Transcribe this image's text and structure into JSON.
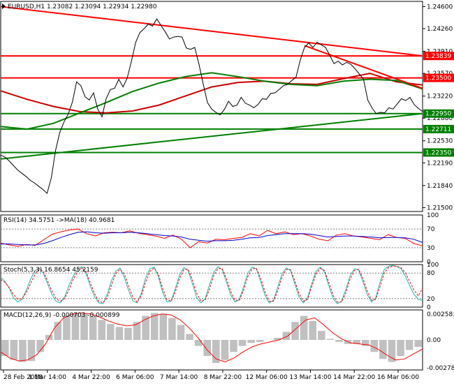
{
  "chart_data": {
    "type": "line",
    "symbol": "EURUSD",
    "timeframe": "H1",
    "ohlc_header": [
      "1.23082",
      "1.23094",
      "1.22934",
      "1.22980"
    ],
    "main": {
      "ylim": [
        1.2144,
        1.2468
      ],
      "y_ticks": [
        "1.24600",
        "1.24260",
        "1.23910",
        "1.23570",
        "1.23220",
        "1.22880",
        "1.22530",
        "1.22190",
        "1.21840",
        "1.21500"
      ],
      "x_range": [
        0,
        100
      ],
      "price": {
        "x": [
          0,
          1,
          2,
          3,
          4,
          5,
          6,
          7,
          8,
          9,
          10,
          11,
          12,
          13,
          14,
          15,
          16,
          17,
          18,
          19,
          20,
          21,
          22,
          23,
          24,
          25,
          26,
          27,
          28,
          29,
          30,
          31,
          32,
          33,
          34,
          35,
          36,
          37,
          38,
          39,
          40,
          41,
          42,
          43,
          44,
          45,
          46,
          47,
          48,
          49,
          50,
          51,
          52,
          53,
          54,
          55,
          56,
          57,
          58,
          59,
          60,
          61,
          62,
          63,
          64,
          65,
          66,
          67,
          68,
          69,
          70,
          71,
          72,
          73,
          74,
          75,
          76,
          77,
          78,
          79,
          80,
          81,
          82,
          83,
          84,
          85,
          86,
          87,
          88,
          89,
          90,
          91,
          92,
          93,
          94,
          95,
          96,
          97,
          98,
          99,
          100
        ],
        "y": [
          1.2231,
          1.2228,
          1.2222,
          1.2215,
          1.2208,
          1.2203,
          1.2198,
          1.2192,
          1.2188,
          1.2183,
          1.2178,
          1.2172,
          1.2196,
          1.2238,
          1.2266,
          1.2282,
          1.2294,
          1.2313,
          1.2344,
          1.2338,
          1.2321,
          1.2316,
          1.2327,
          1.2302,
          1.229,
          1.2318,
          1.2332,
          1.2334,
          1.2348,
          1.2336,
          1.235,
          1.2376,
          1.2405,
          1.242,
          1.2426,
          1.2433,
          1.243,
          1.2441,
          1.2431,
          1.2421,
          1.241,
          1.2413,
          1.2414,
          1.2413,
          1.2396,
          1.2394,
          1.2397,
          1.2371,
          1.2341,
          1.2312,
          1.2302,
          1.2297,
          1.2293,
          1.2301,
          1.2314,
          1.2306,
          1.2308,
          1.232,
          1.2311,
          1.2308,
          1.2304,
          1.2309,
          1.2318,
          1.2317,
          1.2326,
          1.2327,
          1.2332,
          1.2338,
          1.234,
          1.2346,
          1.2351,
          1.2377,
          1.2397,
          1.2404,
          1.2397,
          1.2405,
          1.2401,
          1.2397,
          1.2385,
          1.2372,
          1.2376,
          1.237,
          1.2374,
          1.2371,
          1.2364,
          1.2356,
          1.2348,
          1.2316,
          1.2304,
          1.2295,
          1.2297,
          1.2296,
          1.2304,
          1.2302,
          1.231,
          1.2318,
          1.2315,
          1.232,
          1.2309,
          1.2303,
          1.2298
        ]
      },
      "horizontal_levels": [
        {
          "value": 1.23839,
          "label": "1.23839",
          "color": "#ff0000"
        },
        {
          "value": 1.235,
          "label": "1.23500",
          "color": "#ff0000"
        },
        {
          "value": 1.2295,
          "label": "1.22950",
          "color": "#008000"
        },
        {
          "value": 1.22711,
          "label": "1.22711",
          "color": "#008000"
        },
        {
          "value": 1.2235,
          "label": "1.22350",
          "color": "#008000"
        }
      ],
      "trendlines": [
        {
          "x": [
            0,
            100
          ],
          "y": [
            1.246,
            1.23839
          ],
          "color": "#ff0000"
        },
        {
          "x": [
            72,
            100
          ],
          "y": [
            1.23998,
            1.23339
          ],
          "color": "#ff0000"
        },
        {
          "x": [
            0,
            100
          ],
          "y": [
            1.2225,
            1.2295
          ],
          "color": "#008000"
        }
      ],
      "moving_averages": [
        {
          "color": "#cc0000",
          "y": [
            1.233,
            1.2317,
            1.2306,
            1.2298,
            1.2296,
            1.2299,
            1.2308,
            1.2322,
            1.2336,
            1.2343,
            1.2345,
            1.2341,
            1.234,
            1.2349,
            1.2357,
            1.2344,
            1.2339
          ]
        },
        {
          "color": "#008000",
          "y": [
            1.2275,
            1.2271,
            1.228,
            1.2296,
            1.2312,
            1.2329,
            1.2342,
            1.2352,
            1.2358,
            1.2352,
            1.2345,
            1.234,
            1.2338,
            1.2345,
            1.2348,
            1.2346,
            1.2333
          ]
        }
      ]
    },
    "rsi": {
      "label": "RSI(14) 34.5751 ->MA(18) 40.9681",
      "ylim": [
        0,
        100
      ],
      "y_ticks": [
        "100",
        "70",
        "30",
        "0"
      ],
      "series": [
        {
          "color": "#ff0000",
          "y": [
            40,
            36,
            33,
            37,
            35,
            47,
            59,
            64,
            68,
            70,
            60,
            55,
            62,
            63,
            62,
            66,
            61,
            58,
            55,
            50,
            57,
            48,
            30,
            43,
            40,
            48,
            47,
            50,
            52,
            60,
            55,
            67,
            60,
            64,
            58,
            60,
            55,
            48,
            45,
            57,
            60,
            55,
            53,
            50,
            47,
            58,
            52,
            50,
            39,
            34
          ]
        },
        {
          "color": "#0000cc",
          "y": [
            38,
            38,
            37,
            36,
            36,
            39,
            45,
            52,
            58,
            63,
            64,
            62,
            61,
            62,
            62,
            63,
            62,
            60,
            58,
            56,
            55,
            53,
            48,
            46,
            44,
            45,
            45,
            46,
            48,
            51,
            52,
            56,
            58,
            60,
            60,
            60,
            59,
            56,
            53,
            54,
            55,
            55,
            54,
            53,
            51,
            52,
            52,
            51,
            48,
            41
          ]
        }
      ]
    },
    "stoch": {
      "label": "Stoch(5,3,3) 16.8654 45.2159",
      "ylim": [
        0,
        100
      ],
      "y_ticks": [
        "100",
        "80",
        "20",
        "0"
      ],
      "k": [
        70,
        60,
        45,
        22,
        12,
        18,
        40,
        65,
        85,
        92,
        80,
        55,
        30,
        14,
        10,
        24,
        50,
        72,
        88,
        95,
        80,
        50,
        25,
        10,
        8,
        30,
        62,
        84,
        92,
        70,
        40,
        15,
        10,
        32,
        68,
        90,
        94,
        72,
        35,
        12,
        14,
        44,
        76,
        93,
        86,
        55,
        22,
        10,
        20,
        52,
        82,
        95,
        88,
        58,
        28,
        12,
        18,
        48,
        80,
        94,
        90,
        60,
        28,
        10,
        16,
        46,
        78,
        92,
        86,
        55,
        24,
        10,
        22,
        56,
        84,
        94,
        82,
        50,
        20,
        8,
        14,
        42,
        74,
        90,
        88,
        60,
        30,
        12,
        22,
        58,
        88,
        96,
        98,
        95,
        90,
        72,
        50,
        30,
        18,
        16
      ],
      "d": [
        65,
        58,
        46,
        30,
        18,
        20,
        34,
        55,
        76,
        89,
        84,
        62,
        38,
        20,
        14,
        20,
        40,
        65,
        82,
        92,
        84,
        58,
        32,
        14,
        10,
        22,
        52,
        78,
        89,
        78,
        50,
        24,
        12,
        26,
        58,
        84,
        92,
        78,
        44,
        18,
        14,
        36,
        68,
        88,
        89,
        64,
        32,
        14,
        16,
        42,
        74,
        91,
        90,
        66,
        36,
        16,
        16,
        40,
        72,
        90,
        91,
        68,
        36,
        14,
        14,
        38,
        70,
        88,
        88,
        62,
        32,
        14,
        18,
        48,
        78,
        91,
        86,
        58,
        28,
        12,
        12,
        34,
        66,
        86,
        89,
        68,
        38,
        16,
        18,
        48,
        80,
        93,
        96,
        96,
        92,
        80,
        60,
        40,
        26,
        45
      ]
    },
    "macd": {
      "label": "MACD(12,26,9) -0.000703 -0.000899",
      "ylim": [
        -0.003,
        0.003
      ],
      "y_ticks": [
        "0.002581",
        "0.00",
        "-0.002781"
      ],
      "histogram": [
        -0.0016,
        -0.002,
        -0.0022,
        -0.0021,
        -0.0012,
        0.0005,
        0.0018,
        0.0024,
        0.0026,
        0.0026,
        0.0024,
        0.002,
        0.0016,
        0.0013,
        0.0012,
        0.0018,
        0.0024,
        0.0027,
        0.0026,
        0.0022,
        0.0015,
        0.0006,
        -0.0006,
        -0.0016,
        -0.0023,
        -0.002,
        -0.0012,
        -0.0006,
        -0.0003,
        -0.0002,
        0.0,
        0.0002,
        0.0008,
        0.0018,
        0.0024,
        0.0019,
        0.0009,
        0.0001,
        -0.0002,
        -0.0004,
        -0.0004,
        -0.0006,
        -0.0012,
        -0.0019,
        -0.0022,
        -0.0016,
        -0.001,
        -0.0007
      ],
      "signal": [
        -0.0012,
        -0.0018,
        -0.0021,
        -0.002,
        -0.0015,
        -0.0004,
        0.0012,
        0.0022,
        0.0026,
        0.0027,
        0.0026,
        0.0023,
        0.0019,
        0.0016,
        0.0014,
        0.0015,
        0.002,
        0.0024,
        0.0026,
        0.0025,
        0.002,
        0.0012,
        0.0002,
        -0.001,
        -0.0019,
        -0.0022,
        -0.0018,
        -0.0012,
        -0.0007,
        -0.0004,
        -0.0002,
        0.0,
        0.0004,
        0.0012,
        0.002,
        0.0022,
        0.0015,
        0.0007,
        0.0001,
        -0.0003,
        -0.0004,
        -0.0005,
        -0.0009,
        -0.0015,
        -0.002,
        -0.0019,
        -0.0014,
        -0.0009
      ]
    },
    "x_labels": [
      "28 Feb 2018",
      "1 Mar 14:00",
      "4 Mar 22:00",
      "6 Mar 06:00",
      "7 Mar 14:00",
      "8 Mar 22:00",
      "12 Mar 06:00",
      "13 Mar 14:00",
      "14 Mar 22:00",
      "16 Mar 06:00"
    ]
  }
}
